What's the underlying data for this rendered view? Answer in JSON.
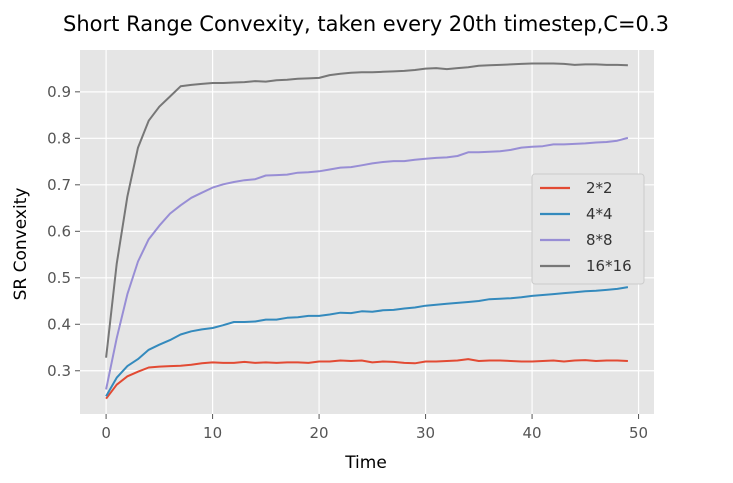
{
  "chart_data": {
    "type": "line",
    "title": "Short Range Convexity, taken every 20th timestep,C=0.3",
    "xlabel": "Time",
    "ylabel": "SR Convexity",
    "xlim": [
      -2.45,
      51.45
    ],
    "ylim": [
      0.207,
      0.99
    ],
    "xticks": [
      0,
      10,
      20,
      30,
      40,
      50
    ],
    "yticks": [
      0.3,
      0.4,
      0.5,
      0.6,
      0.7,
      0.8,
      0.9
    ],
    "grid": true,
    "legend_position": "center-right",
    "background": "#e5e5e5",
    "series": [
      {
        "name": "2*2",
        "color": "#e24a33",
        "x": [
          0,
          1,
          2,
          3,
          4,
          5,
          6,
          7,
          8,
          9,
          10,
          11,
          12,
          13,
          14,
          15,
          16,
          17,
          18,
          19,
          20,
          21,
          22,
          23,
          24,
          25,
          26,
          27,
          28,
          29,
          30,
          31,
          32,
          33,
          34,
          35,
          36,
          37,
          38,
          39,
          40,
          41,
          42,
          43,
          44,
          45,
          46,
          47,
          48,
          49
        ],
        "values": [
          0.24,
          0.27,
          0.288,
          0.298,
          0.307,
          0.309,
          0.31,
          0.311,
          0.313,
          0.316,
          0.318,
          0.317,
          0.317,
          0.319,
          0.317,
          0.318,
          0.317,
          0.318,
          0.318,
          0.317,
          0.32,
          0.32,
          0.322,
          0.321,
          0.322,
          0.318,
          0.32,
          0.319,
          0.317,
          0.316,
          0.32,
          0.32,
          0.321,
          0.322,
          0.325,
          0.321,
          0.322,
          0.322,
          0.321,
          0.32,
          0.32,
          0.321,
          0.322,
          0.32,
          0.322,
          0.323,
          0.321,
          0.322,
          0.322,
          0.321
        ]
      },
      {
        "name": "4*4",
        "color": "#348abd",
        "x": [
          0,
          1,
          2,
          3,
          4,
          5,
          6,
          7,
          8,
          9,
          10,
          11,
          12,
          13,
          14,
          15,
          16,
          17,
          18,
          19,
          20,
          21,
          22,
          23,
          24,
          25,
          26,
          27,
          28,
          29,
          30,
          31,
          32,
          33,
          34,
          35,
          36,
          37,
          38,
          39,
          40,
          41,
          42,
          43,
          44,
          45,
          46,
          47,
          48,
          49
        ],
        "values": [
          0.245,
          0.285,
          0.31,
          0.325,
          0.345,
          0.356,
          0.366,
          0.378,
          0.385,
          0.389,
          0.392,
          0.398,
          0.405,
          0.405,
          0.406,
          0.41,
          0.41,
          0.414,
          0.415,
          0.418,
          0.418,
          0.421,
          0.425,
          0.424,
          0.428,
          0.427,
          0.43,
          0.431,
          0.434,
          0.436,
          0.44,
          0.442,
          0.444,
          0.446,
          0.448,
          0.45,
          0.454,
          0.455,
          0.456,
          0.458,
          0.461,
          0.463,
          0.465,
          0.467,
          0.469,
          0.471,
          0.472,
          0.474,
          0.476,
          0.48
        ]
      },
      {
        "name": "8*8",
        "color": "#988ed5",
        "x": [
          0,
          1,
          2,
          3,
          4,
          5,
          6,
          7,
          8,
          9,
          10,
          11,
          12,
          13,
          14,
          15,
          16,
          17,
          18,
          19,
          20,
          21,
          22,
          23,
          24,
          25,
          26,
          27,
          28,
          29,
          30,
          31,
          32,
          33,
          34,
          35,
          36,
          37,
          38,
          39,
          40,
          41,
          42,
          43,
          44,
          45,
          46,
          47,
          48,
          49
        ],
        "values": [
          0.26,
          0.37,
          0.465,
          0.535,
          0.583,
          0.612,
          0.638,
          0.656,
          0.672,
          0.683,
          0.694,
          0.701,
          0.706,
          0.71,
          0.712,
          0.72,
          0.721,
          0.722,
          0.726,
          0.727,
          0.729,
          0.733,
          0.737,
          0.738,
          0.742,
          0.746,
          0.749,
          0.751,
          0.751,
          0.754,
          0.756,
          0.758,
          0.759,
          0.762,
          0.77,
          0.77,
          0.771,
          0.772,
          0.775,
          0.78,
          0.782,
          0.783,
          0.787,
          0.787,
          0.788,
          0.789,
          0.791,
          0.792,
          0.795,
          0.801
        ]
      },
      {
        "name": "16*16",
        "color": "#777777",
        "x": [
          0,
          1,
          2,
          3,
          4,
          5,
          6,
          7,
          8,
          9,
          10,
          11,
          12,
          13,
          14,
          15,
          16,
          17,
          18,
          19,
          20,
          21,
          22,
          23,
          24,
          25,
          26,
          27,
          28,
          29,
          30,
          31,
          32,
          33,
          34,
          35,
          36,
          37,
          38,
          39,
          40,
          41,
          42,
          43,
          44,
          45,
          46,
          47,
          48,
          49
        ],
        "values": [
          0.328,
          0.53,
          0.675,
          0.78,
          0.838,
          0.868,
          0.89,
          0.912,
          0.915,
          0.917,
          0.919,
          0.919,
          0.92,
          0.921,
          0.923,
          0.922,
          0.925,
          0.926,
          0.928,
          0.929,
          0.93,
          0.936,
          0.939,
          0.941,
          0.942,
          0.942,
          0.943,
          0.944,
          0.945,
          0.947,
          0.95,
          0.951,
          0.949,
          0.951,
          0.953,
          0.956,
          0.957,
          0.958,
          0.959,
          0.96,
          0.961,
          0.961,
          0.961,
          0.96,
          0.958,
          0.959,
          0.959,
          0.958,
          0.958,
          0.957
        ]
      }
    ]
  }
}
